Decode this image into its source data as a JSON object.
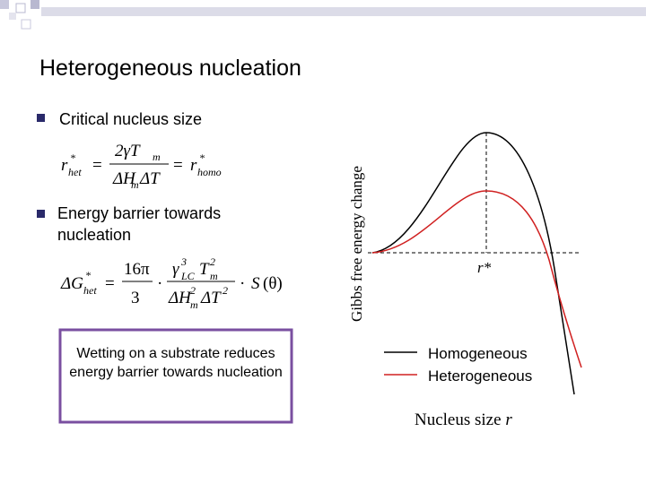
{
  "slide": {
    "title": "Heterogeneous nucleation",
    "bullets": [
      "Critical nucleus size",
      "Energy barrier towards nucleation"
    ],
    "equations": [
      [
        "r",
        "*",
        "het",
        "=",
        "2γT",
        "m",
        "ΔH",
        "m",
        "ΔT",
        "=",
        "r",
        "*",
        "homo"
      ],
      [
        "ΔG",
        "*",
        "het",
        "=",
        "16π",
        "3",
        "·",
        "γ",
        "3",
        "LC",
        "T",
        "2",
        "m",
        "ΔH",
        "2",
        "m",
        "ΔT",
        "2",
        "·",
        "S",
        "(θ)"
      ]
    ],
    "callout": "Wetting on a substrate reduces energy barrier towards nucleation",
    "figure": {
      "y_label": "Gibbs free energy change",
      "x_label": "Nucleus size",
      "x_label_symbol": "r",
      "marker": "r*",
      "legend": [
        "Homogeneous",
        "Heterogeneous"
      ]
    }
  }
}
